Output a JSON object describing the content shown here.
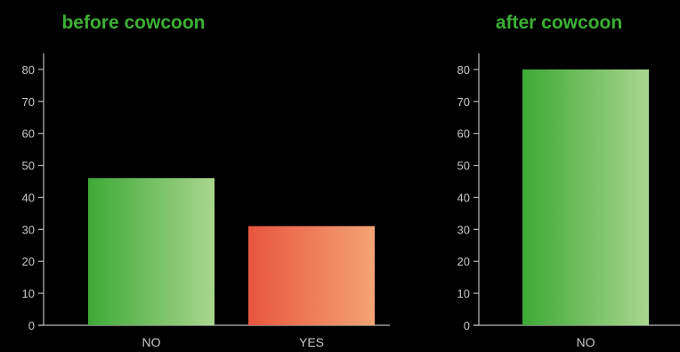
{
  "colors": {
    "background": "#000000",
    "title": "#3cb034",
    "axis": "#b9b9b9",
    "tick_text": "#c8c8c8",
    "green_start": "#3daa35",
    "green_end": "#a9d68e",
    "red_start": "#e8553e",
    "red_end": "#f3a474"
  },
  "chart_data": [
    {
      "type": "bar",
      "title": "before cowcoon",
      "xlabel": "",
      "ylabel": "",
      "categories": [
        "NO",
        "YES"
      ],
      "values": [
        46,
        31
      ],
      "bar_colors": [
        "green",
        "red"
      ],
      "ylim": [
        0,
        85
      ],
      "yticks": [
        0,
        10,
        20,
        30,
        40,
        50,
        60,
        70,
        80
      ],
      "grid": false,
      "legend": "none"
    },
    {
      "type": "bar",
      "title": "after cowcoon",
      "xlabel": "",
      "ylabel": "",
      "categories": [
        "NO"
      ],
      "values": [
        80
      ],
      "bar_colors": [
        "green"
      ],
      "ylim": [
        0,
        85
      ],
      "yticks": [
        0,
        10,
        20,
        30,
        40,
        50,
        60,
        70,
        80
      ],
      "grid": false,
      "legend": "none"
    }
  ]
}
